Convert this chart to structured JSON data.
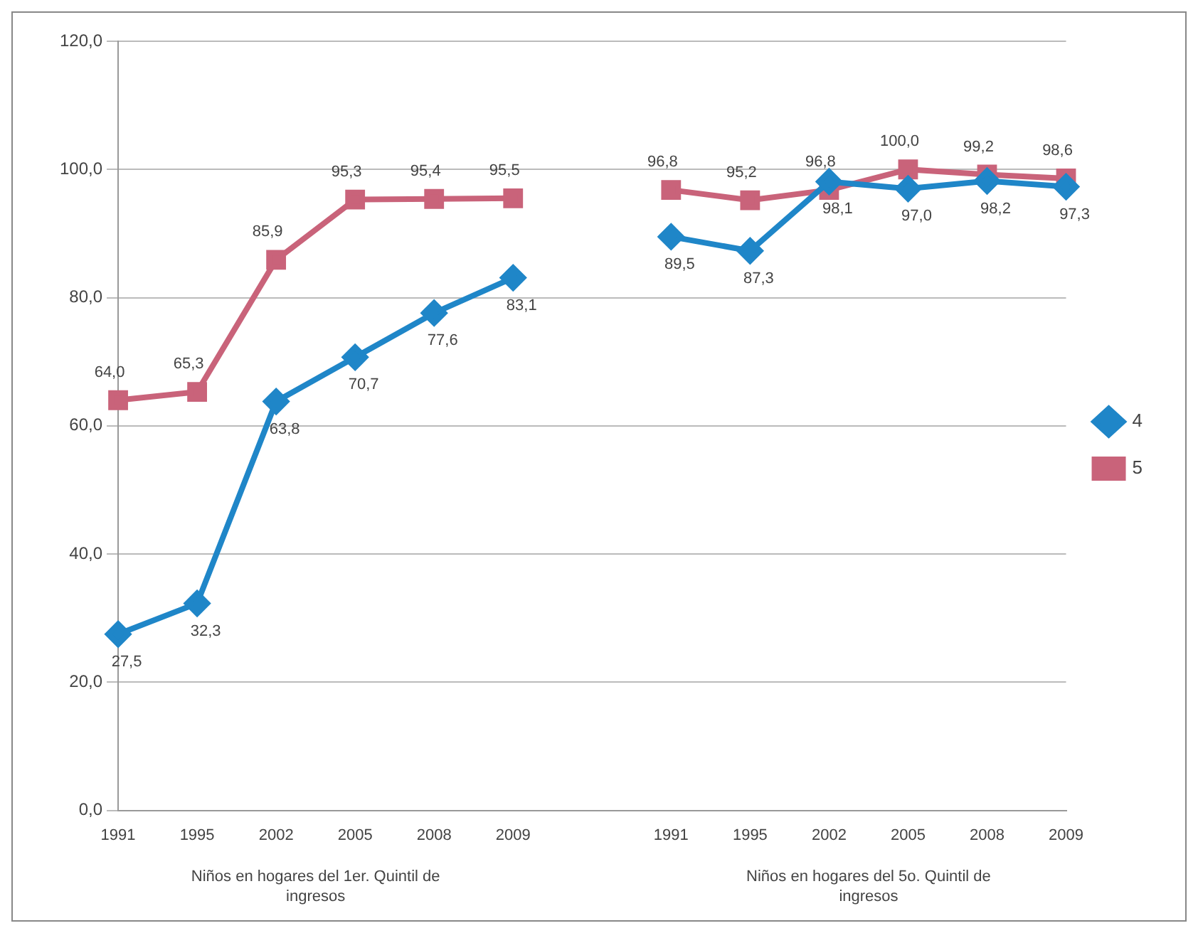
{
  "chart_data": {
    "type": "line",
    "categories": [
      "1991",
      "1995",
      "2002",
      "2005",
      "2008",
      "2009",
      null,
      "1991",
      "1995",
      "2002",
      "2005",
      "2008",
      "2009"
    ],
    "series": [
      {
        "name": "4",
        "color": "#1f86c8",
        "marker": "diamond",
        "values": [
          27.5,
          32.3,
          63.8,
          70.7,
          77.6,
          83.1,
          null,
          89.5,
          87.3,
          98.1,
          97.0,
          98.2,
          97.3
        ],
        "value_labels": [
          "27,5",
          "32,3",
          "63,8",
          "70,7",
          "77,6",
          "83,1",
          null,
          "89,5",
          "87,3",
          "98,1",
          "97,0",
          "98,2",
          "97,3"
        ]
      },
      {
        "name": "5",
        "color": "#c9637a",
        "marker": "square",
        "values": [
          64.0,
          65.3,
          85.9,
          95.3,
          95.4,
          95.5,
          null,
          96.8,
          95.2,
          96.8,
          100.0,
          99.2,
          98.6
        ],
        "value_labels": [
          "64,0",
          "65,3",
          "85,9",
          "95,3",
          "95,4",
          "95,5",
          null,
          "96,8",
          "95,2",
          "96,8",
          "100,0",
          "99,2",
          "98,6"
        ]
      }
    ],
    "ylim": [
      0,
      120
    ],
    "yticks": [
      {
        "value": 0,
        "label": "0,0"
      },
      {
        "value": 20,
        "label": "20,0"
      },
      {
        "value": 40,
        "label": "40,0"
      },
      {
        "value": 60,
        "label": "60,0"
      },
      {
        "value": 80,
        "label": "80,0"
      },
      {
        "value": 100,
        "label": "100,0"
      },
      {
        "value": 120,
        "label": "120,0"
      }
    ],
    "grid": "y",
    "legend": "right",
    "annotations": [
      "Niños en hogares del 1er. Quintil de ingresos",
      "Niños en hogares del 5o. Quintil de ingresos"
    ]
  }
}
